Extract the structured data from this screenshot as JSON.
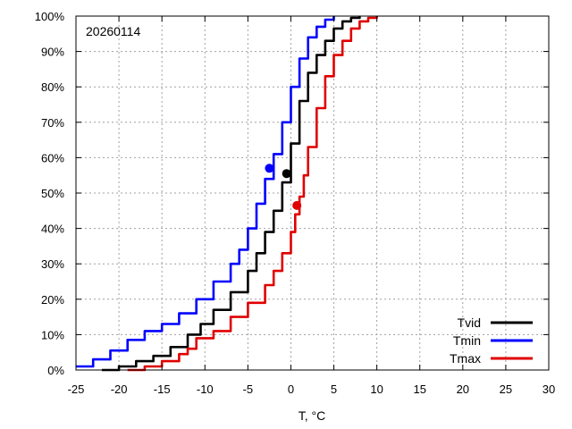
{
  "chart_data": {
    "type": "line",
    "annotation": "20260114",
    "xlabel": "T, °C",
    "ylabel": "",
    "xlim": [
      -25,
      30
    ],
    "ylim": [
      0,
      100
    ],
    "x_ticks": [
      "-25",
      "-20",
      "-15",
      "-10",
      "-5",
      "0",
      "5",
      "10",
      "15",
      "20",
      "25",
      "30"
    ],
    "y_ticks": [
      "0%",
      "10%",
      "20%",
      "30%",
      "40%",
      "50%",
      "60%",
      "70%",
      "80%",
      "90%",
      "100%"
    ],
    "grid": true,
    "legend_position": "bottom-right",
    "series": [
      {
        "name": "Tvid",
        "color": "#000000",
        "x": [
          -22,
          -20,
          -18,
          -16,
          -14,
          -12,
          -10.5,
          -9,
          -7,
          -5,
          -4,
          -3,
          -2,
          -1,
          0,
          1,
          2,
          3,
          4,
          5,
          6,
          7,
          8
        ],
        "y": [
          0,
          1,
          2.5,
          4,
          6.5,
          10,
          13,
          17,
          22,
          28,
          33,
          39,
          45,
          53,
          64,
          76,
          84,
          89,
          93,
          96.5,
          98.5,
          99.5,
          100
        ],
        "marker": {
          "x": -0.5,
          "y": 55.5
        }
      },
      {
        "name": "Tmin",
        "color": "#0000ff",
        "x": [
          -25,
          -23,
          -21,
          -19,
          -17,
          -15,
          -13,
          -11,
          -9,
          -7,
          -6,
          -5,
          -4,
          -3,
          -2,
          -1,
          0,
          1,
          2,
          3,
          4,
          5
        ],
        "y": [
          1,
          3,
          5.5,
          8.5,
          11,
          13,
          16,
          20,
          25,
          30,
          34,
          40,
          47,
          54,
          61,
          70,
          80,
          88,
          94,
          97,
          99,
          100
        ],
        "marker": {
          "x": -2.5,
          "y": 57
        }
      },
      {
        "name": "Tmax",
        "color": "#e00000",
        "x": [
          -19,
          -17,
          -15,
          -13,
          -12,
          -11,
          -9,
          -7,
          -5,
          -3,
          -2,
          -1,
          0,
          0.5,
          1,
          1.5,
          2,
          3,
          4,
          5,
          6,
          7,
          8,
          9,
          10
        ],
        "y": [
          0,
          1,
          2.5,
          4.5,
          6,
          9,
          11,
          15,
          19,
          24,
          28,
          33,
          39,
          44,
          49,
          55,
          63,
          74,
          83,
          89,
          93,
          96.5,
          98.5,
          99.5,
          100
        ],
        "marker": {
          "x": 0.7,
          "y": 46.5
        }
      }
    ]
  }
}
